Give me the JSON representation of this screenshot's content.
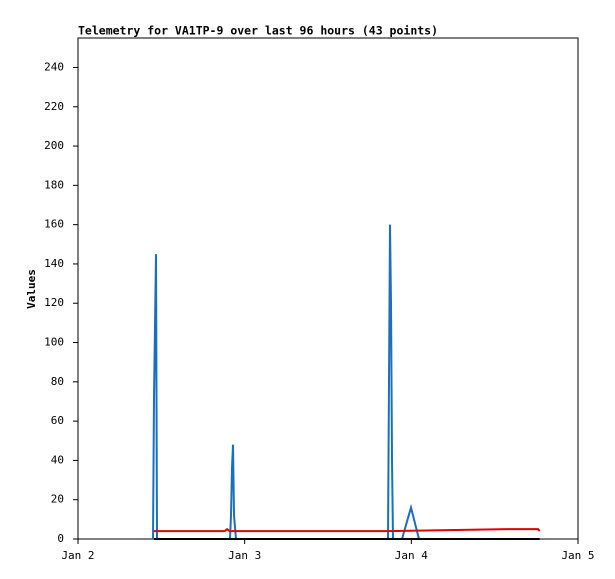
{
  "chart_data": {
    "type": "line",
    "title": "Telemetry for VA1TP-9 over last 96 hours (43 points)",
    "y_label": "Values",
    "xlim": [
      2,
      5
    ],
    "xticks": [
      {
        "value": 2,
        "label": "Jan 2"
      },
      {
        "value": 3,
        "label": "Jan 3"
      },
      {
        "value": 4,
        "label": "Jan 4"
      },
      {
        "value": 5,
        "label": "Jan 5"
      }
    ],
    "ylim": [
      0,
      255
    ],
    "yticks": [
      0,
      20,
      40,
      60,
      80,
      100,
      120,
      140,
      160,
      180,
      200,
      220,
      240
    ],
    "series": [
      {
        "color": "#1a6fc0",
        "x": [
          2.45,
          2.456,
          2.468,
          2.474,
          2.912,
          2.918,
          2.924,
          2.93,
          2.936,
          2.948,
          3.86,
          3.866,
          3.872,
          3.878,
          3.884,
          3.89,
          3.944,
          3.998,
          4.046
        ],
        "values": [
          0,
          72,
          145,
          0,
          0,
          12,
          36,
          48,
          12,
          0,
          0,
          80,
          160,
          120,
          40,
          0,
          0,
          16,
          0
        ]
      },
      {
        "color": "#e00000",
        "x": [
          2.456,
          2.88,
          2.895,
          2.91,
          3.86,
          4.22,
          4.58,
          4.76,
          4.77
        ],
        "values": [
          4,
          4,
          5,
          4,
          4,
          4.5,
          5,
          5,
          4
        ]
      },
      {
        "color": "#000000",
        "x": [
          2.456,
          4.77
        ],
        "values": [
          0,
          0
        ]
      }
    ]
  }
}
